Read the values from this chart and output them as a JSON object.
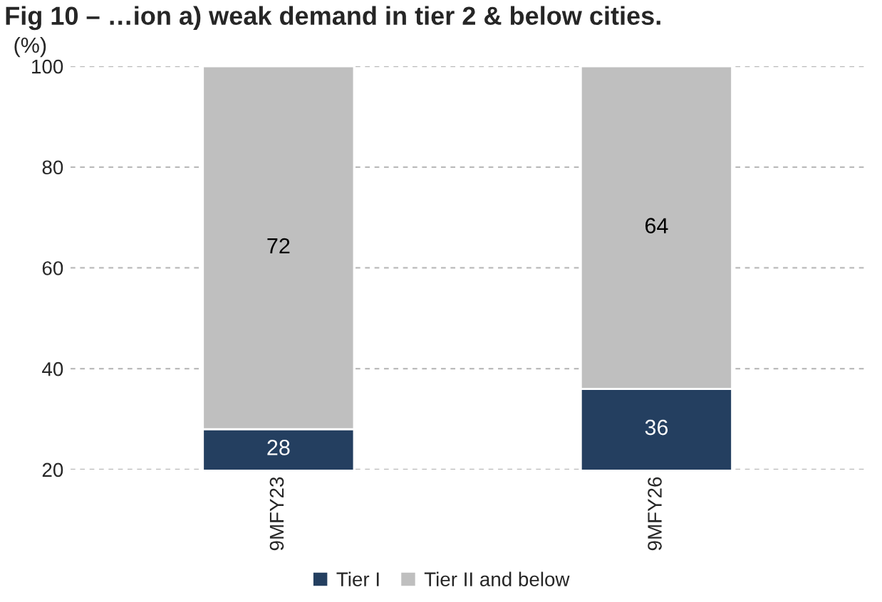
{
  "chart_data": {
    "type": "bar",
    "title": "Fig 10 – …ion a) weak demand in tier 2 & below cities.",
    "ylabel": "(%)",
    "categories": [
      "9MFY23",
      "9MFY26"
    ],
    "series": [
      {
        "name": "Tier I",
        "color": "#243f60",
        "values": [
          28,
          36
        ]
      },
      {
        "name": "Tier II and below",
        "color": "#bfbfbf",
        "values": [
          72,
          64
        ]
      }
    ],
    "stacked": true,
    "ylim": [
      20,
      100
    ],
    "yticks": [
      20,
      40,
      60,
      80,
      100
    ],
    "grid": "y",
    "legend": "bottom",
    "data_labels": true
  }
}
